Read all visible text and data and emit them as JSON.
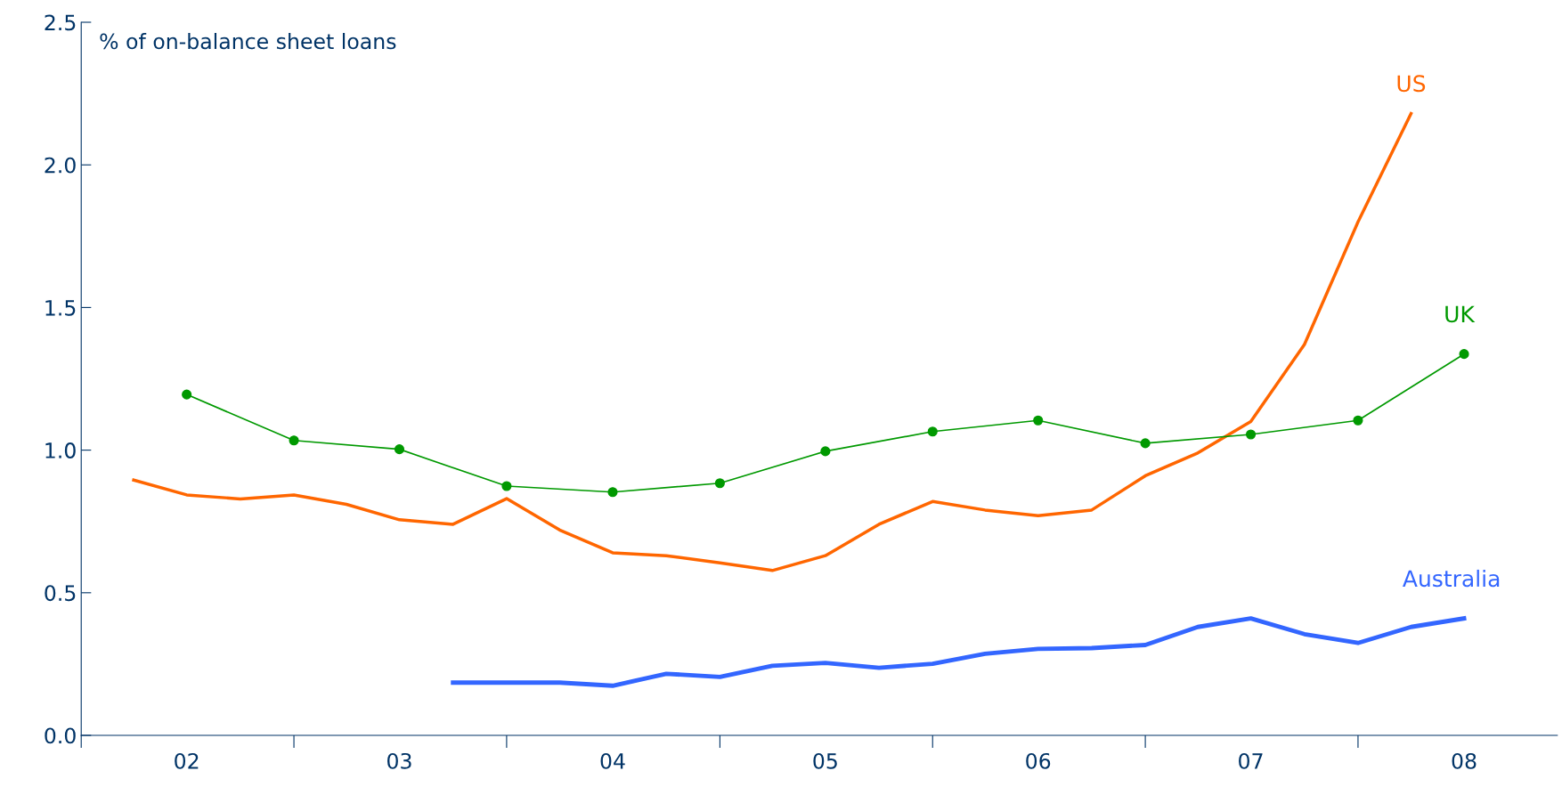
{
  "chart_data": {
    "type": "line",
    "ylabel": "% of on-balance sheet loans",
    "xlim": [
      "2002-01-01",
      "2008-12-08"
    ],
    "ylim": [
      0,
      2.5
    ],
    "xticks": [
      {
        "value": "2002-01-01",
        "label": null
      },
      {
        "value": "2002-07-01",
        "label": "02"
      },
      {
        "value": "2003-01-01",
        "label": null
      },
      {
        "value": "2003-07-01",
        "label": "03"
      },
      {
        "value": "2004-01-01",
        "label": null
      },
      {
        "value": "2004-07-01",
        "label": "04"
      },
      {
        "value": "2005-01-01",
        "label": null
      },
      {
        "value": "2005-07-01",
        "label": "05"
      },
      {
        "value": "2006-01-01",
        "label": null
      },
      {
        "value": "2006-07-01",
        "label": "06"
      },
      {
        "value": "2007-01-01",
        "label": null
      },
      {
        "value": "2007-07-01",
        "label": "07"
      },
      {
        "value": "2008-01-01",
        "label": null
      },
      {
        "value": "2008-07-01",
        "label": "08"
      }
    ],
    "yticks": [
      {
        "value": 0,
        "label": "0.0"
      },
      {
        "value": 0.5,
        "label": "0.5"
      },
      {
        "value": 1,
        "label": "1.0"
      },
      {
        "value": 1.5,
        "label": "1.5"
      },
      {
        "value": 2,
        "label": "2.0"
      },
      {
        "value": 2.5,
        "label": "2.5"
      }
    ],
    "grid": false,
    "legend": false,
    "series": [
      {
        "name": "US",
        "color": "#ff6600",
        "marker": "none",
        "x": [
          "2002-04",
          "2002-07",
          "2002-10",
          "2003-01",
          "2003-04",
          "2003-07",
          "2003-10",
          "2004-01",
          "2004-04",
          "2004-07",
          "2004-10",
          "2005-01",
          "2005-04",
          "2005-07",
          "2005-10",
          "2006-01",
          "2006-04",
          "2006-07",
          "2006-10",
          "2007-01",
          "2007-04",
          "2007-07",
          "2007-10",
          "2008-01",
          "2008-04"
        ],
        "values": [
          0.895,
          0.843,
          0.829,
          0.843,
          0.81,
          0.756,
          0.74,
          0.83,
          0.72,
          0.64,
          0.63,
          0.605,
          0.578,
          0.63,
          0.74,
          0.82,
          0.79,
          0.77,
          0.79,
          0.91,
          0.99,
          1.1,
          1.37,
          1.8,
          2.18
        ]
      },
      {
        "name": "UK",
        "color": "#009900",
        "marker": "circle",
        "x": [
          "2002-07",
          "2003-01",
          "2003-07",
          "2004-01",
          "2004-07",
          "2005-01",
          "2005-07",
          "2006-01",
          "2006-07",
          "2007-01",
          "2007-07",
          "2008-01",
          "2008-07"
        ],
        "values": [
          1.195,
          1.034,
          1.003,
          0.874,
          0.853,
          0.884,
          0.996,
          1.065,
          1.104,
          1.024,
          1.055,
          1.104,
          1.337
        ]
      },
      {
        "name": "Australia",
        "color": "#3366ff",
        "marker": "none",
        "x": [
          "2003-10",
          "2004-01",
          "2004-04",
          "2004-07",
          "2004-10",
          "2005-01",
          "2005-04",
          "2005-07",
          "2005-10",
          "2006-01",
          "2006-04",
          "2006-07",
          "2006-10",
          "2007-01",
          "2007-04",
          "2007-07",
          "2007-10",
          "2008-01",
          "2008-04",
          "2008-07"
        ],
        "values": [
          0.185,
          0.185,
          0.185,
          0.174,
          0.216,
          0.205,
          0.244,
          0.254,
          0.237,
          0.251,
          0.286,
          0.303,
          0.306,
          0.317,
          0.38,
          0.41,
          0.355,
          0.324,
          0.38,
          0.41
        ]
      }
    ]
  }
}
